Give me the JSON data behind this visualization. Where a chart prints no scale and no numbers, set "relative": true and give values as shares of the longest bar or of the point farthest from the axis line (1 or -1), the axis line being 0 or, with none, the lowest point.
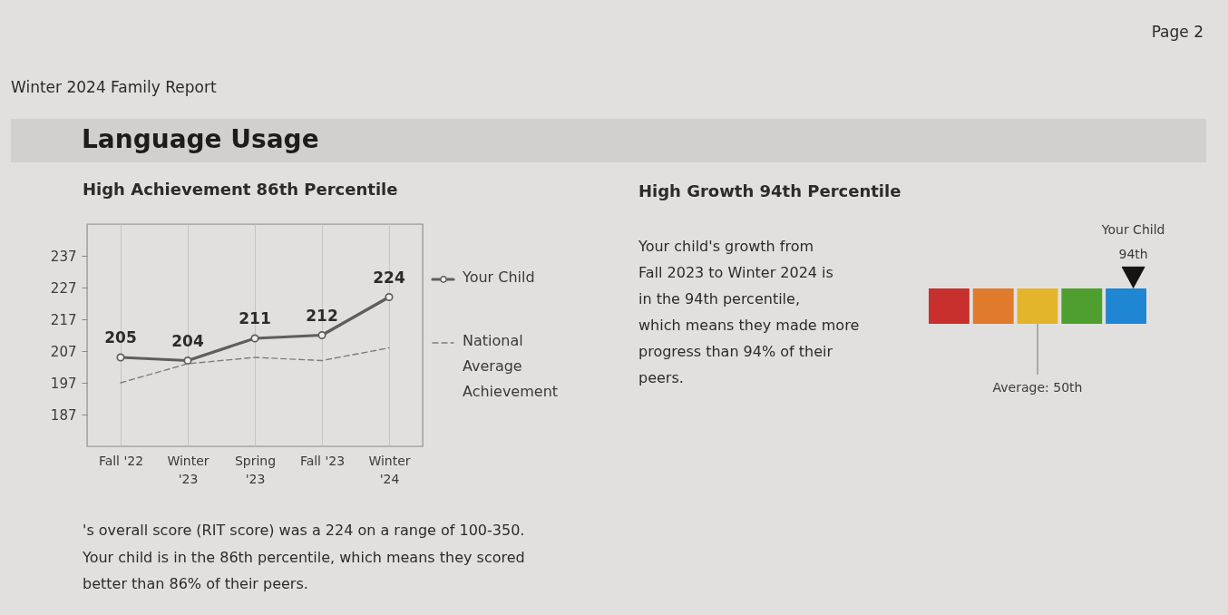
{
  "chart_data": [
    {
      "type": "other",
      "title": "Language Usage",
      "annotations": [
        "Winter 2024 Family Report",
        "Page 2"
      ]
    },
    {
      "type": "line",
      "title": "High Achievement 86th Percentile",
      "categories": [
        "Fall '22",
        "Winter '23",
        "Spring '23",
        "Fall '23",
        "Winter '24"
      ],
      "series": [
        {
          "name": "Your Child",
          "color": "#5e5e5e",
          "values": [
            205,
            204,
            211,
            212,
            224
          ],
          "marker": "circle",
          "line_style": "solid",
          "value_labels": [
            "205",
            "204",
            "211",
            "212",
            "224"
          ]
        },
        {
          "name": "National Average Achievement",
          "color": "#7d7d7d",
          "values": [
            197,
            203,
            205,
            204,
            208
          ],
          "marker": "none",
          "line_style": "dashed"
        }
      ],
      "ylim": [
        177,
        247
      ],
      "yticks": [
        187,
        197,
        207,
        217,
        227,
        237
      ],
      "grid": "x",
      "legend": "right",
      "annotations": [
        "'s overall score (RIT score) was a 224 on a range of 100-350. Your child is in the 86th percentile, which means they scored better than 86% of their peers."
      ]
    },
    {
      "type": "other",
      "title": "High Growth 94th Percentile",
      "annotations": [
        "Your child's growth from Fall 2023 to Winter 2024 is in the 94th percentile, which means they made more progress than 94% of their peers."
      ]
    },
    {
      "type": "bar",
      "relative": true,
      "categories": [
        null,
        null,
        null,
        null,
        null
      ],
      "values": [
        1,
        1,
        1,
        1,
        1
      ],
      "colors": [
        "#c8302e",
        "#e07a2c",
        "#e3b52b",
        "#4f9f2f",
        "#1f86d3"
      ],
      "annotations": [
        "Your Child 94th",
        "Average: 50th"
      ]
    }
  ]
}
